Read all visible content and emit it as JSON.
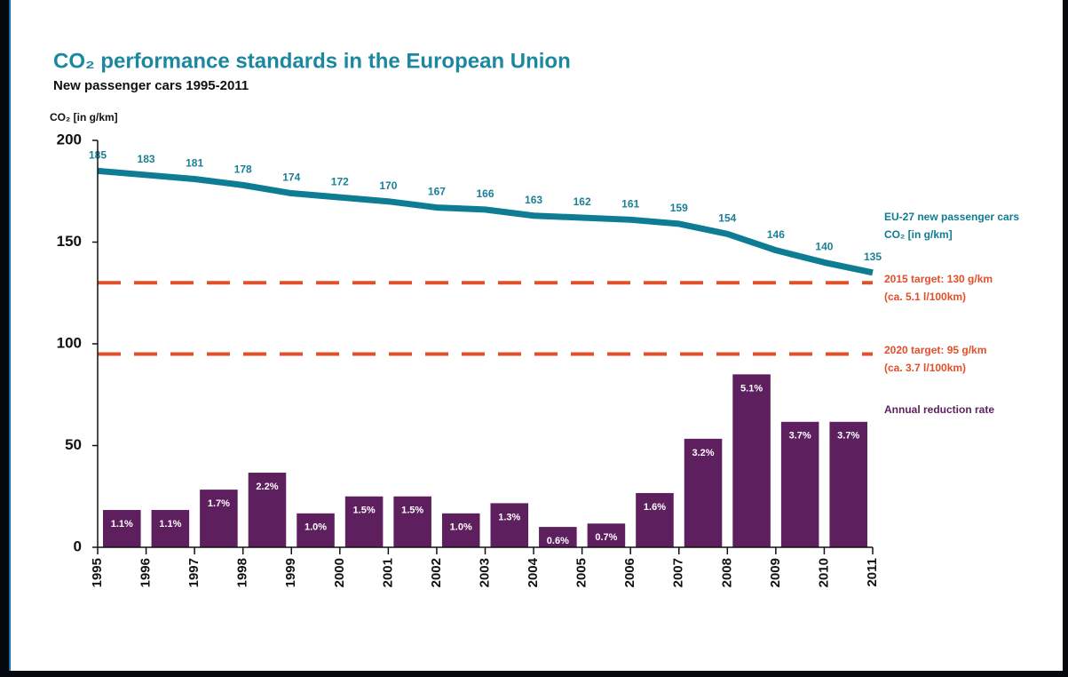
{
  "chart_data": {
    "type": "combo",
    "title": "CO₂ performance standards in the European Union",
    "subtitle": "New passenger cars 1995-2011",
    "y_label": "CO₂ [in g/km]",
    "xlim": [
      1995,
      2011
    ],
    "xticks": [
      1995,
      1996,
      1997,
      1998,
      1999,
      2000,
      2001,
      2002,
      2003,
      2004,
      2005,
      2006,
      2007,
      2008,
      2009,
      2010,
      2011
    ],
    "ylim": [
      0,
      200
    ],
    "yticks": [
      0,
      50,
      100,
      150,
      200
    ],
    "y2lim": [
      0,
      12
    ],
    "series": [
      {
        "name": "EU-27 new passenger cars CO₂ [in g/km]",
        "type": "line",
        "color": "#0e7d93",
        "x": [
          1995,
          1996,
          1997,
          1998,
          1999,
          2000,
          2001,
          2002,
          2003,
          2004,
          2005,
          2006,
          2007,
          2008,
          2009,
          2010,
          2011
        ],
        "values": [
          185,
          183,
          181,
          178,
          174,
          172,
          170,
          167,
          166,
          163,
          162,
          161,
          159,
          154,
          146,
          140,
          135
        ]
      },
      {
        "name": "Annual reduction rate",
        "type": "bar",
        "axis": "y2",
        "color": "#5e1f5f",
        "x": [
          1996,
          1997,
          1998,
          1999,
          2000,
          2001,
          2002,
          2003,
          2004,
          2005,
          2006,
          2007,
          2008,
          2009,
          2010,
          2011
        ],
        "values": [
          1.1,
          1.1,
          1.7,
          2.2,
          1.0,
          1.5,
          1.5,
          1.0,
          1.3,
          0.6,
          0.7,
          1.6,
          3.2,
          5.1,
          3.7,
          3.7
        ],
        "value_labels": [
          "1.1%",
          "1.1%",
          "1.7%",
          "2.2%",
          "1.0%",
          "1.5%",
          "1.5%",
          "1.0%",
          "1.3%",
          "0.6%",
          "0.7%",
          "1.6%",
          "3.2%",
          "5.1%",
          "3.7%",
          "3.7%"
        ]
      }
    ],
    "reference_lines": [
      {
        "value": 130,
        "label": "2015 target: 130 g/km",
        "sublabel": "(ca. 5.1 l/100km)",
        "color": "#e0502a"
      },
      {
        "value": 95,
        "label": "2020 target: 95 g/km",
        "sublabel": "(ca. 3.7 l/100km)",
        "color": "#e0502a"
      }
    ]
  }
}
